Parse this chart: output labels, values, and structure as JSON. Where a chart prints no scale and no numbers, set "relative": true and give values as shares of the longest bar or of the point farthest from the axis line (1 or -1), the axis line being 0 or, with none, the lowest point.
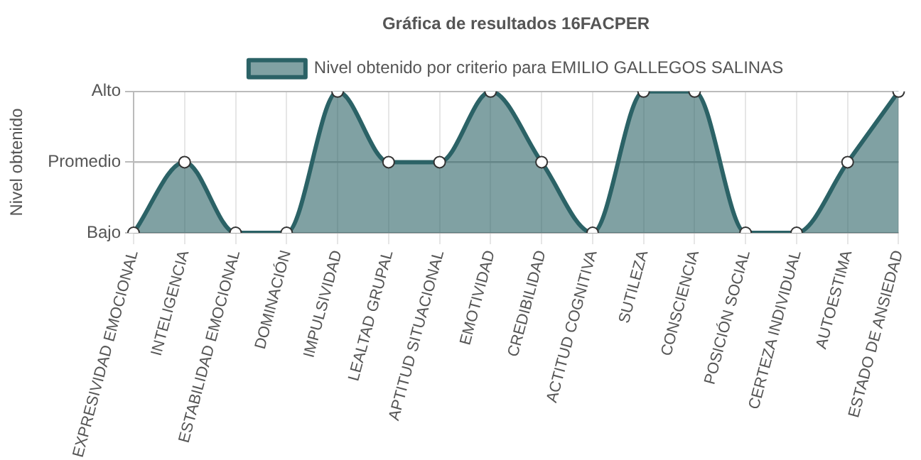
{
  "chart_data": {
    "type": "area",
    "title": "Gráfica de resultados 16FACPER",
    "ylabel": "Nivel obtenido",
    "categories": [
      "EXPRESIVIDAD EMOCIONAL",
      "INTELIGENCIA",
      "ESTABILIDAD EMOCIONAL",
      "DOMINACIÓN",
      "IMPULSIVIDAD",
      "LEALTAD GRUPAL",
      "APTITUD SITUACIONAL",
      "EMOTIVIDAD",
      "CREDIBILIDAD",
      "ACTITUD COGNITIVA",
      "SUTILEZA",
      "CONSCIENCIA",
      "POSICIÓN SOCIAL",
      "CERTEZA INDIVIDUAL",
      "AUTOESTIMA",
      "ESTADO DE ANSIEDAD"
    ],
    "y_categories": [
      "Alto",
      "Promedio",
      "Bajo"
    ],
    "relative": true,
    "ref_lines": [
      {
        "axis": "y",
        "value": 0.5,
        "color": "#bbbbbb"
      }
    ],
    "series": [
      {
        "name": "Nivel obtenido por criterio para EMILIO GALLEGOS SALINAS",
        "color": "#2b6266",
        "values": [
          0,
          0.5,
          0,
          0,
          1,
          0.5,
          0.5,
          1,
          0.5,
          0,
          1,
          1,
          0,
          0,
          0.5,
          1
        ]
      }
    ],
    "grid": true,
    "legend": "top",
    "marker": "circle",
    "line_style": "solid"
  }
}
